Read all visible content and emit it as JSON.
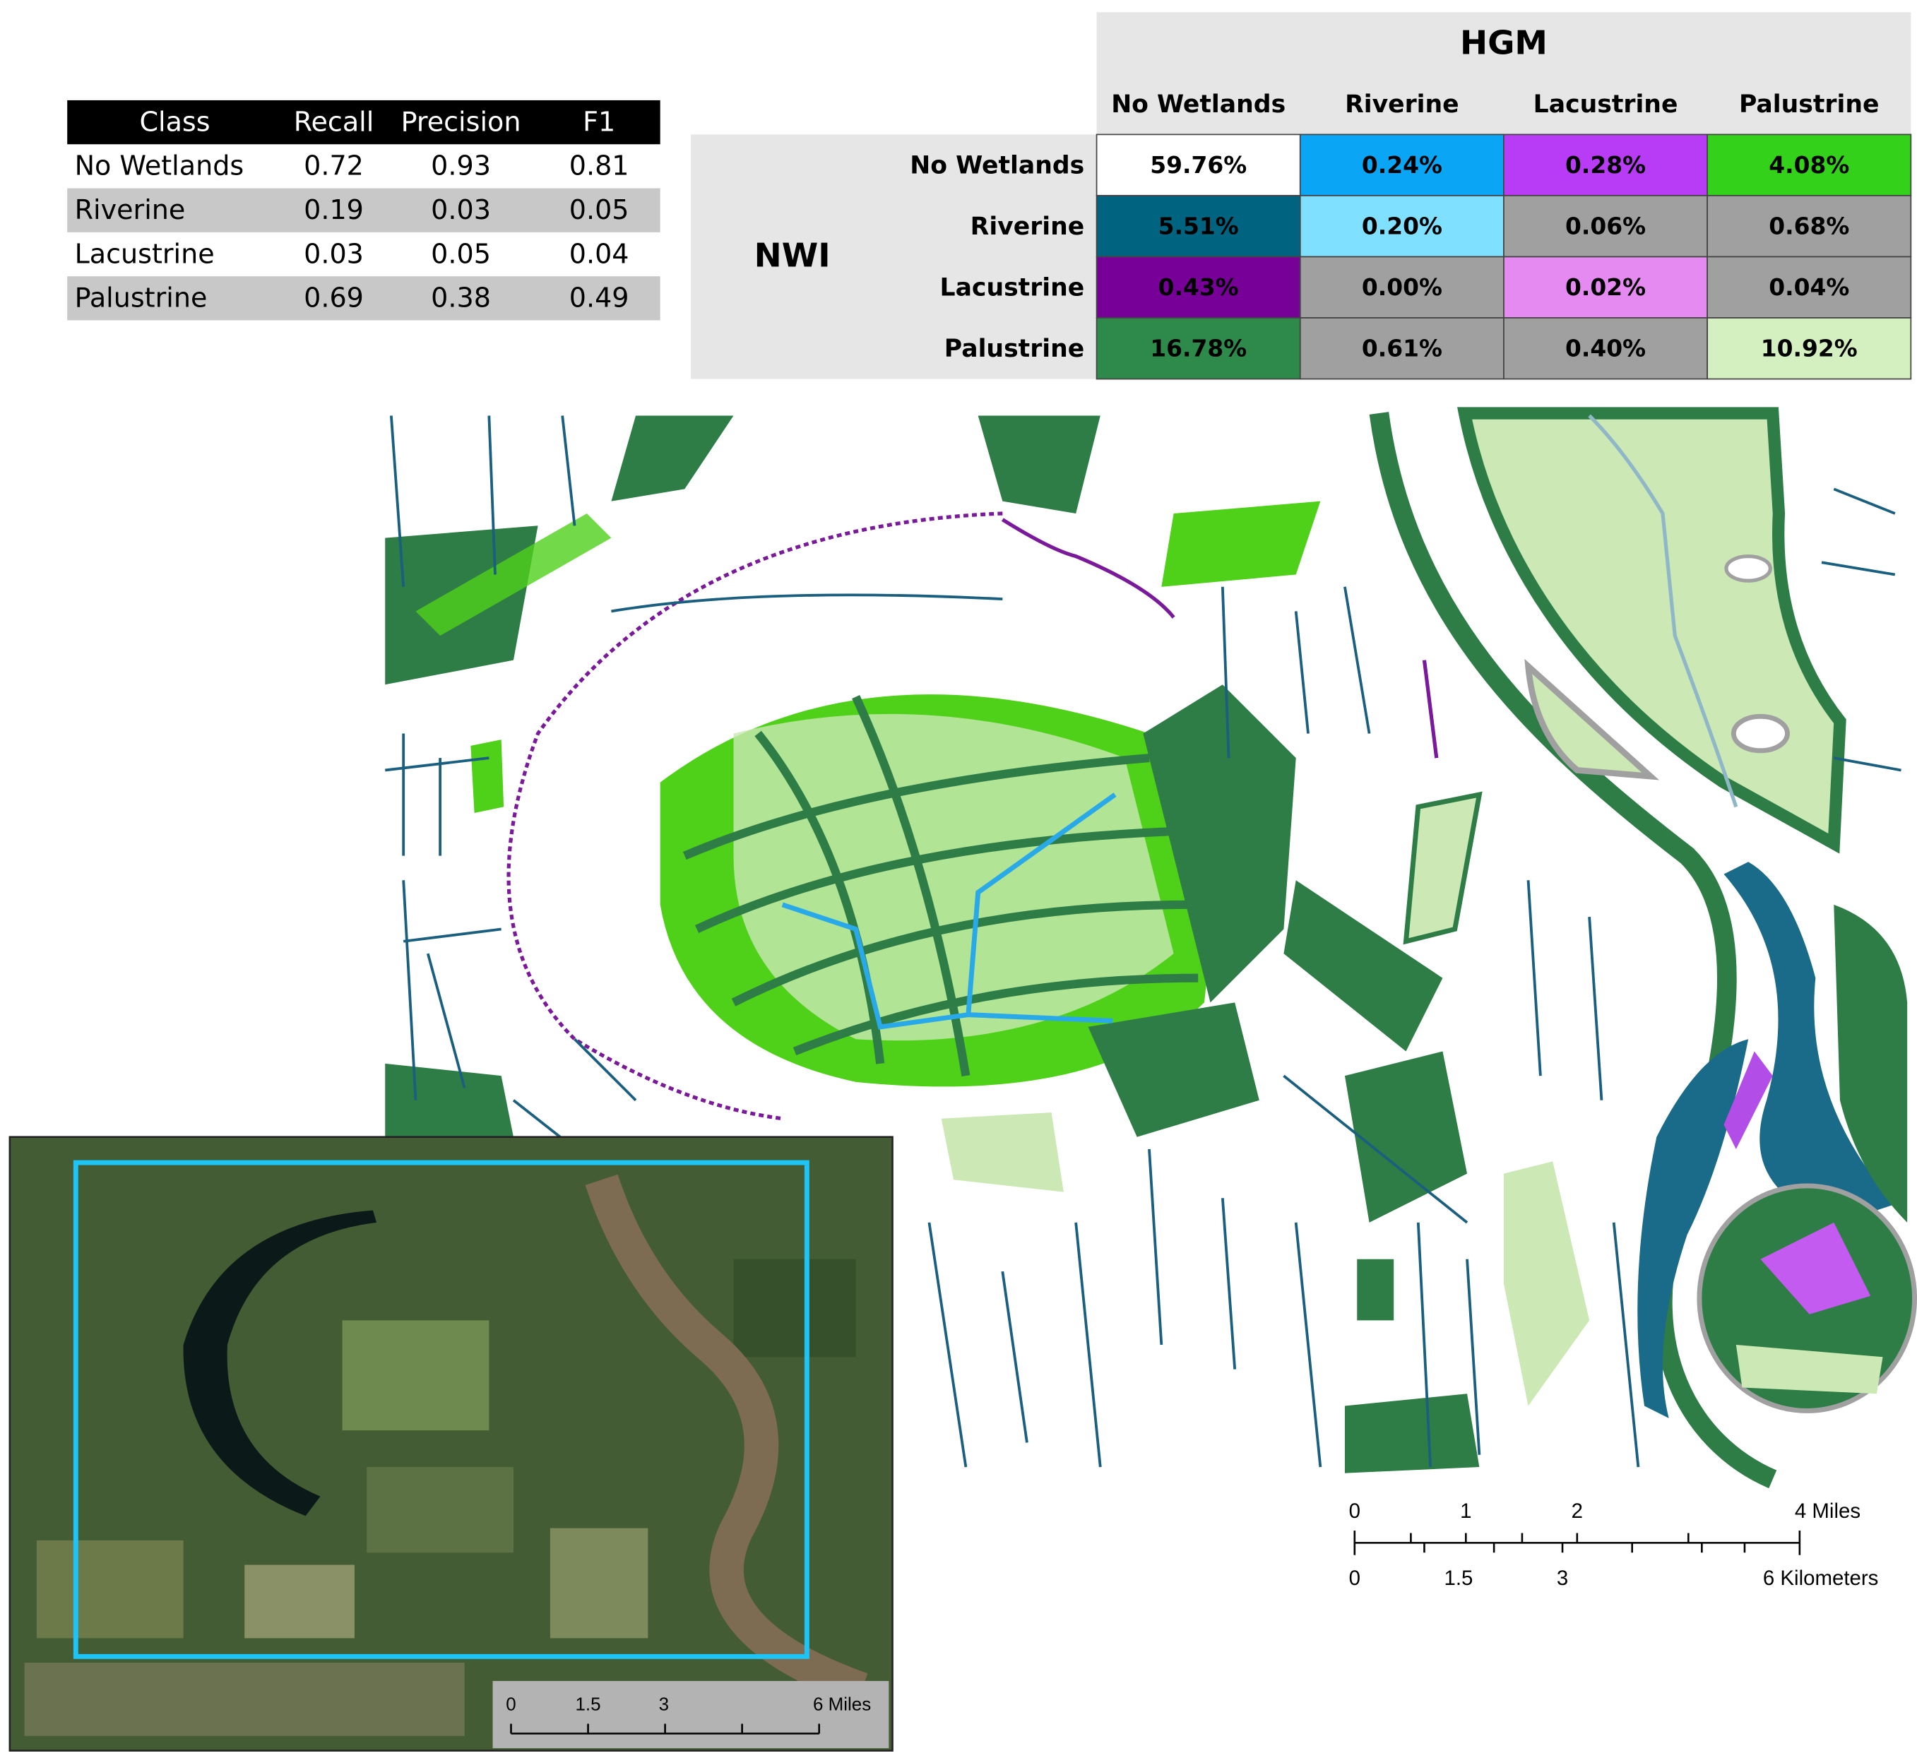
{
  "metrics_table": {
    "header": [
      "Class",
      "Recall",
      "Precision",
      "F1"
    ],
    "rows": [
      [
        "No Wetlands",
        "0.72",
        "0.93",
        "0.81"
      ],
      [
        "Riverine",
        "0.19",
        "0.03",
        "0.05"
      ],
      [
        "Lacustrine",
        "0.03",
        "0.05",
        "0.04"
      ],
      [
        "Palustrine",
        "0.69",
        "0.38",
        "0.49"
      ]
    ]
  },
  "confusion_matrix": {
    "column_title": "HGM",
    "row_title": "NWI",
    "columns": [
      "No Wetlands",
      "Riverine",
      "Lacustrine",
      "Palustrine"
    ],
    "rows": [
      {
        "label": "No Wetlands",
        "cells": [
          "59.76%",
          "0.24%",
          "0.28%",
          "4.08%"
        ]
      },
      {
        "label": "Riverine",
        "cells": [
          "5.51%",
          "0.20%",
          "0.06%",
          "0.68%"
        ]
      },
      {
        "label": "Lacustrine",
        "cells": [
          "0.43%",
          "0.00%",
          "0.02%",
          "0.04%"
        ]
      },
      {
        "label": "Palustrine",
        "cells": [
          "16.78%",
          "0.61%",
          "0.40%",
          "10.92%"
        ]
      }
    ]
  },
  "map_scale_bar": {
    "miles_labels": [
      "0",
      "1",
      "2",
      "4 Miles"
    ],
    "km_labels": [
      "0",
      "1.5",
      "3",
      "6 Kilometers"
    ]
  },
  "inset_scale_bar": {
    "labels": [
      "0",
      "1.5",
      "3",
      "6 Miles"
    ]
  }
}
